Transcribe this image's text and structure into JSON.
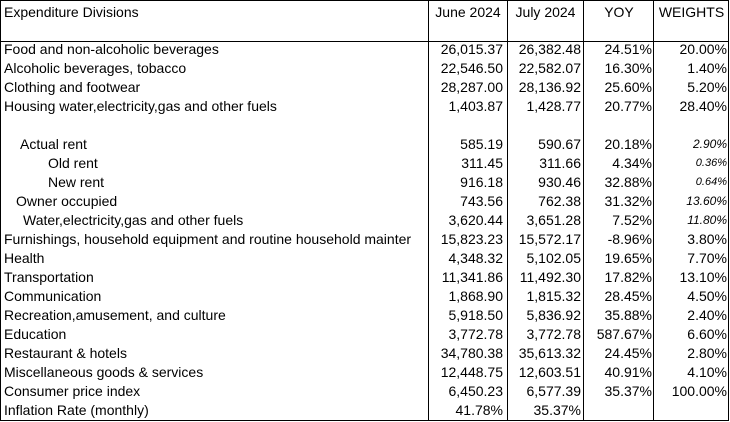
{
  "table": {
    "headers": [
      "Expenditure Divisions",
      "June 2024",
      "July 2024",
      "YOY",
      "WEIGHTS"
    ],
    "rows": [
      {
        "label": "Food and non-alcoholic beverages",
        "june": "26,015.37",
        "july": "26,382.48",
        "yoy": "24.51%",
        "weight": "20.00%"
      },
      {
        "label": "Alcoholic beverages, tobacco",
        "june": "22,546.50",
        "july": "22,582.07",
        "yoy": "16.30%",
        "weight": "1.40%"
      },
      {
        "label": "Clothing and footwear",
        "june": "28,287.00",
        "july": "28,136.92",
        "yoy": "25.60%",
        "weight": "5.20%"
      },
      {
        "label": "Housing water,electricity,gas and other fuels",
        "june": "1,403.87",
        "july": "1,428.77",
        "yoy": "20.77%",
        "weight": "28.40%"
      },
      {
        "label": "Actual rent",
        "june": "585.19",
        "july": "590.67",
        "yoy": "20.18%",
        "weight": "2.90%"
      },
      {
        "label": "Old rent",
        "june": "311.45",
        "july": "311.66",
        "yoy": "4.34%",
        "weight": "0.36%"
      },
      {
        "label": "New rent",
        "june": "916.18",
        "july": "930.46",
        "yoy": "32.88%",
        "weight": "0.64%"
      },
      {
        "label": "Owner occupied",
        "june": "743.56",
        "july": "762.38",
        "yoy": "31.32%",
        "weight": "13.60%"
      },
      {
        "label": "Water,electricity,gas and other fuels",
        "june": "3,620.44",
        "july": "3,651.28",
        "yoy": "7.52%",
        "weight": "11.80%"
      },
      {
        "label": "Furnishings, household equipment and routine household mainter",
        "june": "15,823.23",
        "july": "15,572.17",
        "yoy": "-8.96%",
        "weight": "3.80%"
      },
      {
        "label": "Health",
        "june": "4,348.32",
        "july": "5,102.05",
        "yoy": "19.65%",
        "weight": "7.70%"
      },
      {
        "label": "Transportation",
        "june": "11,341.86",
        "july": "11,492.30",
        "yoy": "17.82%",
        "weight": "13.10%"
      },
      {
        "label": "Communication",
        "june": "1,868.90",
        "july": "1,815.32",
        "yoy": "28.45%",
        "weight": "4.50%"
      },
      {
        "label": "Recreation,amusement, and culture",
        "june": "5,918.50",
        "july": "5,836.92",
        "yoy": "35.88%",
        "weight": "2.40%"
      },
      {
        "label": "Education",
        "june": "3,772.78",
        "july": "3,772.78",
        "yoy": "587.67%",
        "weight": "6.60%"
      },
      {
        "label": "Restaurant & hotels",
        "june": "34,780.38",
        "july": "35,613.32",
        "yoy": "24.45%",
        "weight": "2.80%"
      },
      {
        "label": "Miscellaneous goods & services",
        "june": "12,448.75",
        "july": "12,603.51",
        "yoy": "40.91%",
        "weight": "4.10%"
      },
      {
        "label": "Consumer price index",
        "june": "6,450.23",
        "july": "6,577.39",
        "yoy": "35.37%",
        "weight": "100.00%"
      },
      {
        "label": "Inflation Rate (monthly)",
        "june": "41.78%",
        "july": "35.37%"
      }
    ]
  }
}
